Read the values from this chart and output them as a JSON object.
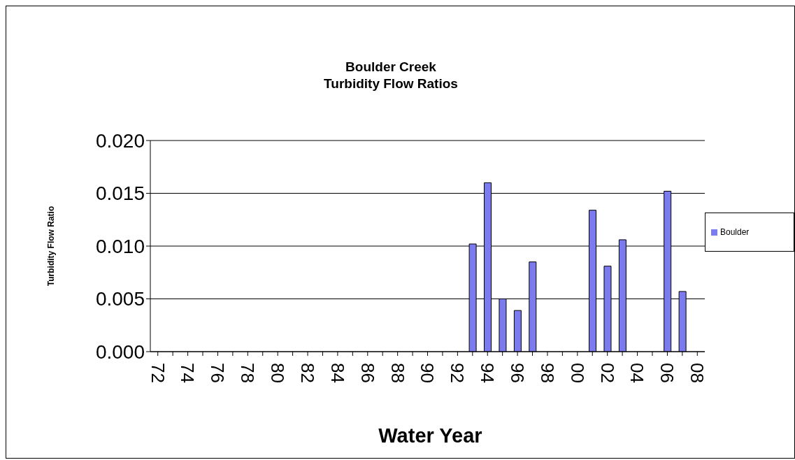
{
  "chart_data": {
    "type": "bar",
    "title": "Boulder Creek\nTurbidity Flow Ratios",
    "xlabel": "Water Year",
    "ylabel": "Turbidity Flow Ratio",
    "categories": [
      "72",
      null,
      "74",
      null,
      "76",
      null,
      "78",
      null,
      "80",
      null,
      "82",
      null,
      "84",
      null,
      "86",
      null,
      "88",
      null,
      "90",
      null,
      "92",
      null,
      "94",
      null,
      "96",
      null,
      "98",
      null,
      "00",
      null,
      "02",
      null,
      "04",
      null,
      "06",
      null,
      "08"
    ],
    "series": [
      {
        "name": "Boulder",
        "color": "#7b7bef",
        "values": [
          null,
          null,
          null,
          null,
          null,
          null,
          null,
          null,
          null,
          null,
          null,
          null,
          null,
          null,
          null,
          null,
          null,
          null,
          null,
          null,
          null,
          0.0102,
          0.016,
          0.005,
          0.0039,
          0.0085,
          null,
          null,
          null,
          0.0134,
          0.0081,
          0.0106,
          null,
          null,
          0.0152,
          0.0057,
          null
        ]
      }
    ],
    "ylim": [
      0,
      0.02
    ],
    "yticks": [
      {
        "value": 0,
        "label": "0.000"
      },
      {
        "value": 0.005,
        "label": "0.005"
      },
      {
        "value": 0.01,
        "label": "0.010"
      },
      {
        "value": 0.015,
        "label": "0.015"
      },
      {
        "value": 0.02,
        "label": "0.020"
      }
    ],
    "grid": "y",
    "legend": "right"
  }
}
